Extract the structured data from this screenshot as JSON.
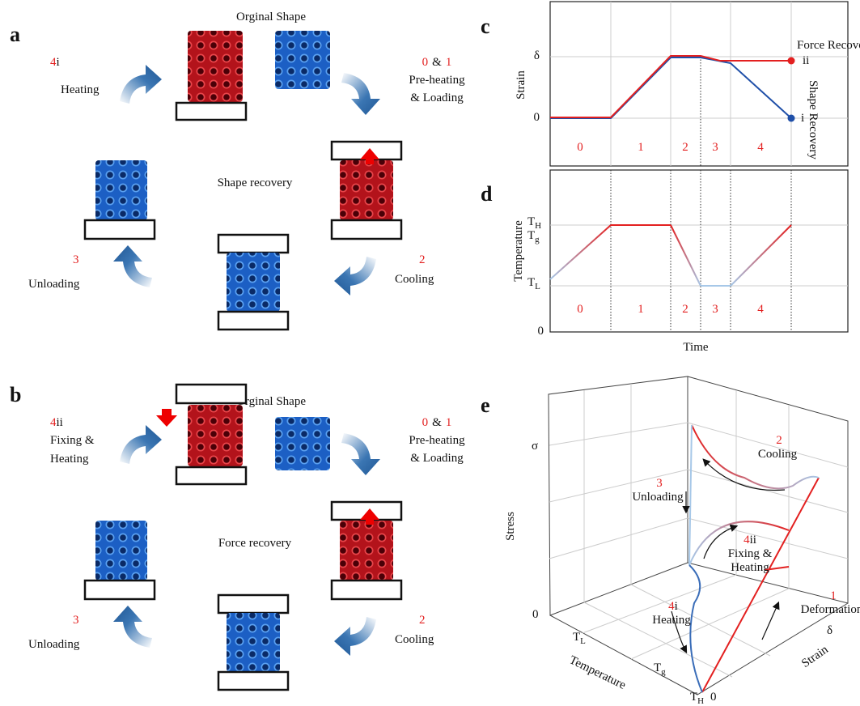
{
  "panel_a": {
    "letter": "a",
    "original_shape": "Orginal Shape",
    "center": "Shape recovery",
    "step_4": {
      "number": "4",
      "suffix": "i",
      "lines": [
        "Heating"
      ]
    },
    "step_01": {
      "first": "0",
      "joiner": "&",
      "second": "1",
      "lines": [
        "Pre-heating",
        "& Loading"
      ]
    },
    "step_2": {
      "number": "2",
      "lines": [
        "Cooling"
      ]
    },
    "step_3": {
      "number": "3",
      "lines": [
        "Unloading"
      ]
    }
  },
  "panel_b": {
    "letter": "b",
    "original_shape": "Orginal Shape",
    "center": "Force recovery",
    "step_4": {
      "number": "4",
      "suffix": "ii",
      "lines": [
        "Fixing &",
        "Heating"
      ]
    },
    "step_01": {
      "first": "0",
      "joiner": "&",
      "second": "1",
      "lines": [
        "Pre-heating",
        "& Loading"
      ]
    },
    "step_2": {
      "number": "2",
      "lines": [
        "Cooling"
      ]
    },
    "step_3": {
      "number": "3",
      "lines": [
        "Unloading"
      ]
    }
  },
  "panel_c": {
    "letter": "c",
    "y_label": "Strain",
    "y_ticks": [
      "δ",
      "0"
    ],
    "force_recovery": "Force Recovery",
    "point_ii": "ii",
    "point_i": "i",
    "shape_recovery": "Shape Recovery",
    "phases": [
      "0",
      "1",
      "2",
      "3",
      "4"
    ]
  },
  "panel_d": {
    "letter": "d",
    "y_label": "Temperature",
    "y_ticks": [
      {
        "base": "T",
        "sub": "H"
      },
      {
        "base": "T",
        "sub": "g"
      },
      {
        "base": "T",
        "sub": "L"
      },
      "0"
    ],
    "x_label": "Time",
    "phases": [
      "0",
      "1",
      "2",
      "3",
      "4"
    ]
  },
  "panel_e": {
    "letter": "e",
    "z_symbol": "σ",
    "z_label": "Stress",
    "z_zero": "0",
    "temperature_ticks": [
      {
        "base": "T",
        "sub": "L"
      },
      {
        "base": "T",
        "sub": "g"
      },
      {
        "base": "T",
        "sub": "H"
      }
    ],
    "temperature_label": "Temperature",
    "strain_zero": "0",
    "strain_symbol": "δ",
    "strain_label": "Strain",
    "annotations": [
      {
        "number": "2",
        "lines": [
          "Cooling"
        ]
      },
      {
        "number": "3",
        "lines": [
          "Unloading"
        ]
      },
      {
        "number": "4",
        "suffix": "ii",
        "lines": [
          "Fixing &",
          "Heating"
        ]
      },
      {
        "number": "4",
        "suffix": "i",
        "lines": [
          "Heating"
        ]
      },
      {
        "number": "1",
        "lines": [
          "Deformation"
        ]
      }
    ]
  }
}
